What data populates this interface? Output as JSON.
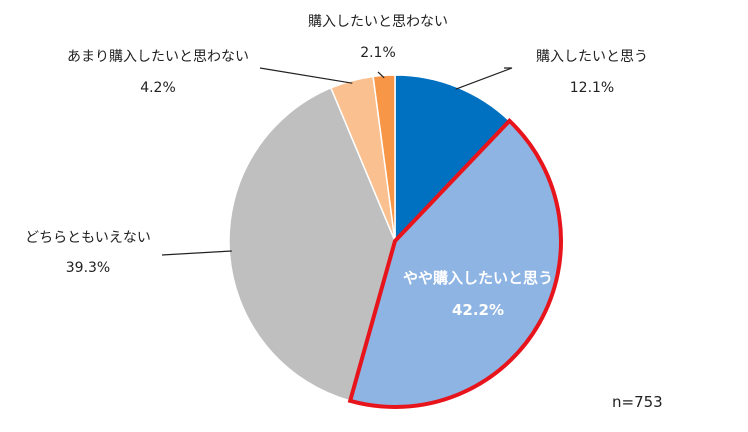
{
  "chart_data": {
    "type": "pie",
    "start_angle_deg": 0,
    "direction": "clockwise",
    "slices": [
      {
        "name": "購入したいと思う",
        "value": 12.1,
        "label": "12.1%",
        "color": "#0070C0"
      },
      {
        "name": "やや購入したいと思う",
        "value": 42.2,
        "label": "42.2%",
        "color": "#8EB4E3",
        "highlight": true
      },
      {
        "name": "どちらともいえない",
        "value": 39.3,
        "label": "39.3%",
        "color": "#BFBFBF"
      },
      {
        "name": "あまり購入したいと思わない",
        "value": 4.2,
        "label": "4.2%",
        "color": "#FAC090"
      },
      {
        "name": "購入したいと思わない",
        "value": 2.1,
        "label": "2.1%",
        "color": "#F79646"
      }
    ],
    "highlight_color": "#E8141C",
    "leader_color": "#222222",
    "note": "n=753"
  }
}
